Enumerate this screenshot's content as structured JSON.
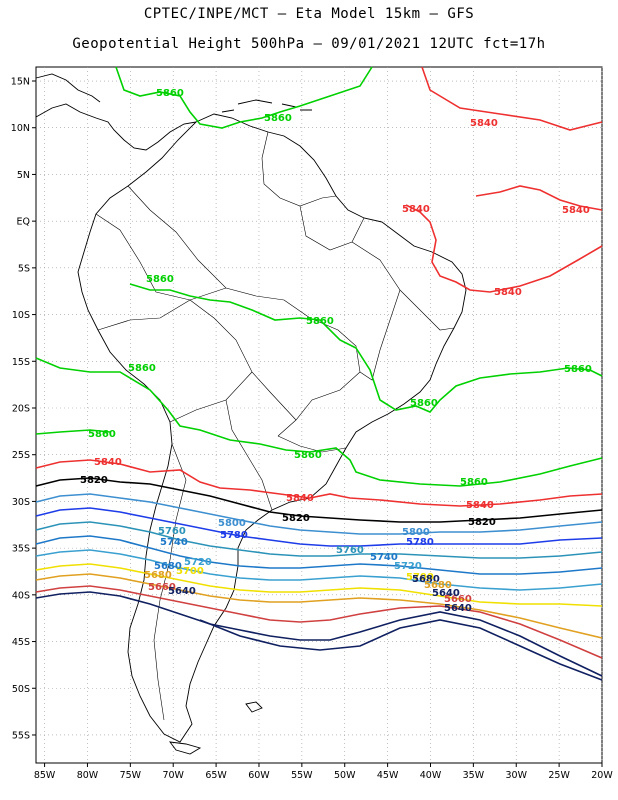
{
  "header": {
    "title_line1": "CPTEC/INPE/MCT –  Eta Model 15km – GFS",
    "title_line2": "Geopotential Height 500hPa – 09/01/2021 12UTC fct=17h"
  },
  "axes": {
    "lat_labels": [
      "15N",
      "10N",
      "5N",
      "EQ",
      "5S",
      "10S",
      "15S",
      "20S",
      "25S",
      "30S",
      "35S",
      "40S",
      "45S",
      "50S",
      "55S"
    ],
    "lat_values": [
      15,
      10,
      5,
      0,
      -5,
      -10,
      -15,
      -20,
      -25,
      -30,
      -35,
      -40,
      -45,
      -50,
      -55
    ],
    "lon_labels": [
      "85W",
      "80W",
      "75W",
      "70W",
      "65W",
      "60W",
      "55W",
      "50W",
      "45W",
      "40W",
      "35W",
      "30W",
      "25W",
      "20W"
    ],
    "lon_values": [
      -85,
      -80,
      -75,
      -70,
      -65,
      -60,
      -55,
      -50,
      -45,
      -40,
      -35,
      -30,
      -25,
      -20
    ],
    "lat_range": [
      -58,
      16.5
    ],
    "lon_range": [
      -86,
      -20
    ]
  },
  "contours": [
    {
      "level": "5860",
      "color": "#00d000"
    },
    {
      "level": "5840",
      "color": "#ee3030"
    },
    {
      "level": "5820",
      "color": "#000000"
    },
    {
      "level": "5800",
      "color": "#3d8fd0"
    },
    {
      "level": "5780",
      "color": "#1e3ce8"
    },
    {
      "level": "5760",
      "color": "#2c93b8"
    },
    {
      "level": "5740",
      "color": "#1e78c8"
    },
    {
      "level": "5720",
      "color": "#3aa0d0"
    },
    {
      "level": "5700",
      "color": "#f0e000"
    },
    {
      "level": "5680",
      "color": "#e0a020"
    },
    {
      "level": "5660",
      "color": "#d04040"
    },
    {
      "level": "5640",
      "color": "#102060"
    }
  ],
  "labels": {
    "c5860": "5860",
    "c5840": "5840",
    "c5820": "5820",
    "c5800": "5800",
    "c5780": "5780",
    "c5760": "5760",
    "c5740": "5740",
    "c5720": "5720",
    "c5700": "5700",
    "c5680": "5680",
    "c5660": "5660",
    "c5640": "5640"
  }
}
